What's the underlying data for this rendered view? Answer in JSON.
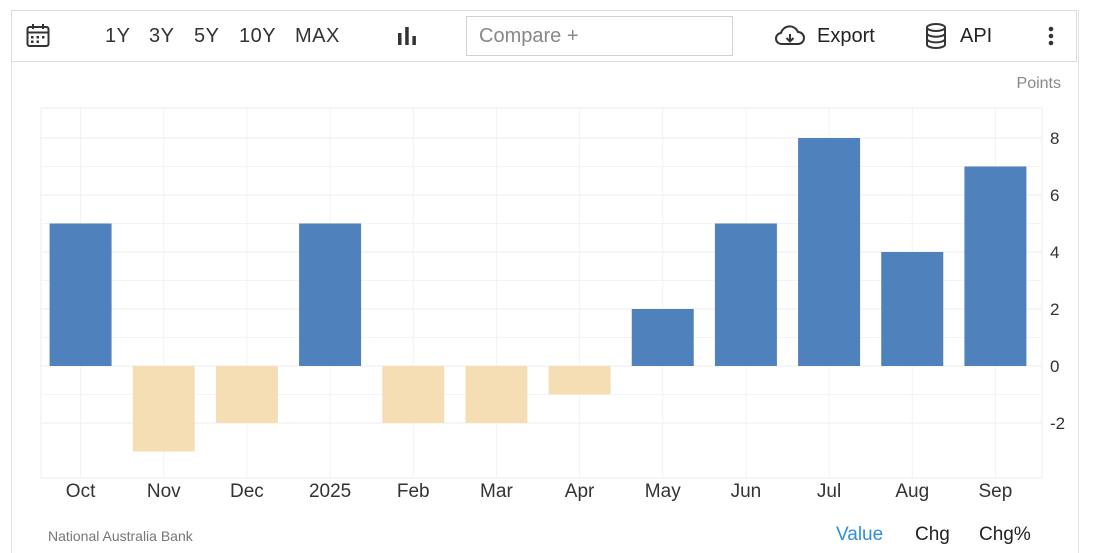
{
  "toolbar": {
    "ranges": [
      "1Y",
      "3Y",
      "5Y",
      "10Y",
      "MAX"
    ],
    "compare_placeholder": "Compare +",
    "export_label": "Export",
    "api_label": "API",
    "icons": [
      "calendar-icon",
      "bar-chart-icon",
      "cloud-download-icon",
      "database-icon",
      "more-vertical-icon"
    ]
  },
  "units_label": "Points",
  "source": "National Australia Bank",
  "tabs": [
    "Value",
    "Chg",
    "Chg%"
  ],
  "colors": {
    "positive": "#4f81bd",
    "negative": "#f5deb3",
    "active_tab": "#2f8fdc",
    "grid": "#ececec"
  },
  "chart_data": {
    "type": "bar",
    "categories": [
      "Oct",
      "Nov",
      "Dec",
      "2025",
      "Feb",
      "Mar",
      "Apr",
      "May",
      "Jun",
      "Jul",
      "Aug",
      "Sep"
    ],
    "values": [
      5,
      -3,
      -2,
      5,
      -2,
      -2,
      -1,
      2,
      5,
      8,
      4,
      7
    ],
    "y_ticks": [
      8,
      6,
      4,
      2,
      0,
      -2
    ],
    "ylim": [
      -4,
      9
    ],
    "yaxis_position": "right",
    "grid": true
  }
}
